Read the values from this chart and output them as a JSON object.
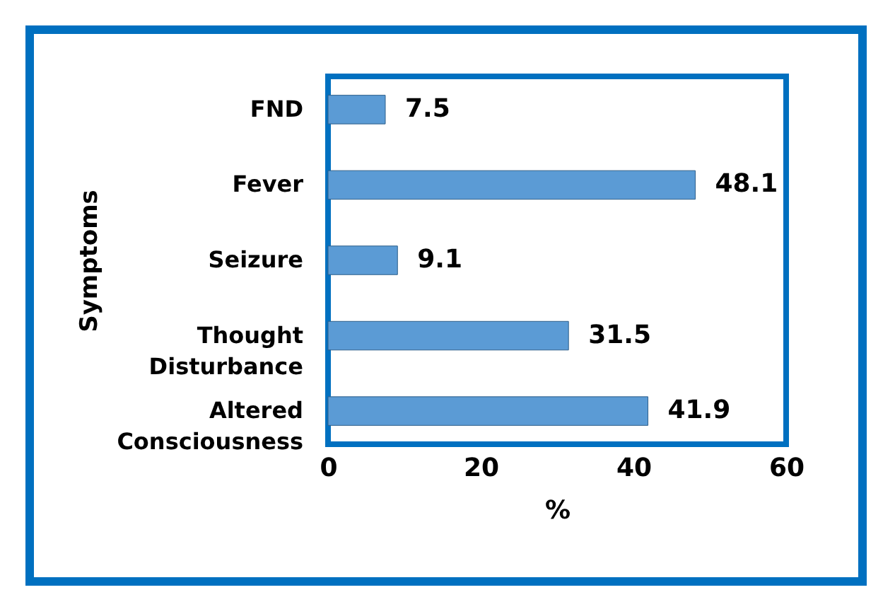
{
  "chart_data": {
    "type": "bar",
    "orientation": "horizontal",
    "xlabel": "%",
    "ylabel": "Symptoms",
    "categories": [
      "FND",
      "Fever",
      "Seizure",
      "Thought Disturbance",
      "Altered Consciousness"
    ],
    "values": [
      7.5,
      48.1,
      9.1,
      31.5,
      41.9
    ],
    "color": "#5b9bd5",
    "xlim": [
      0,
      60
    ],
    "xticks": [
      0,
      20,
      40,
      60
    ],
    "grid": false,
    "data_labels": true
  }
}
